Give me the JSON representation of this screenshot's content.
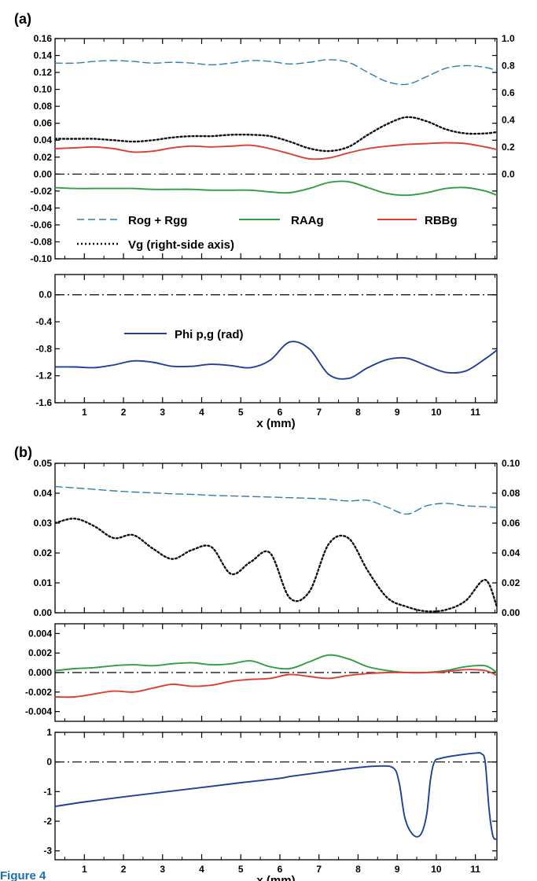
{
  "figure_labels": {
    "a": "(a)",
    "b": "(b)"
  },
  "caption_fragment": "Figure 4",
  "chart_data": [
    {
      "id": "a1",
      "type": "line",
      "xlim": [
        0.25,
        11.55
      ],
      "ylim": [
        -0.1,
        0.16
      ],
      "y_ticks": [
        "0.16",
        "0.14",
        "0.12",
        "0.10",
        "0.08",
        "0.06",
        "0.04",
        "0.02",
        "0.00",
        "-0.02",
        "-0.04",
        "-0.06",
        "-0.08",
        "-0.10"
      ],
      "y2lim": [
        -0.625,
        1.0
      ],
      "y2_ticks": [
        "1.0",
        "0.8",
        "0.6",
        "0.4",
        "0.2",
        "0.0"
      ],
      "zero_line": true,
      "legend": "inside lower-left",
      "series": [
        {
          "name": "Rog + Rgg",
          "axis": "left",
          "color": "#2a7fb0",
          "style": "dashed",
          "x": [
            0.25,
            0.75,
            1.25,
            1.75,
            2.25,
            2.75,
            3.25,
            3.75,
            4.25,
            4.75,
            5.25,
            5.75,
            6.25,
            6.75,
            7.25,
            7.75,
            8.25,
            8.75,
            9.25,
            9.75,
            10.25,
            10.75,
            11.25,
            11.55
          ],
          "y": [
            0.131,
            0.131,
            0.133,
            0.134,
            0.133,
            0.131,
            0.132,
            0.131,
            0.129,
            0.131,
            0.134,
            0.133,
            0.13,
            0.132,
            0.135,
            0.132,
            0.12,
            0.109,
            0.106,
            0.115,
            0.125,
            0.128,
            0.126,
            0.122
          ]
        },
        {
          "name": "RAAg",
          "axis": "left",
          "color": "#2f9e44",
          "style": "solid",
          "x": [
            0.25,
            0.75,
            1.25,
            1.75,
            2.25,
            2.75,
            3.25,
            3.75,
            4.25,
            4.75,
            5.25,
            5.75,
            6.25,
            6.75,
            7.25,
            7.75,
            8.25,
            8.75,
            9.25,
            9.75,
            10.25,
            10.75,
            11.25,
            11.55
          ],
          "y": [
            -0.016,
            -0.017,
            -0.017,
            -0.017,
            -0.017,
            -0.018,
            -0.018,
            -0.018,
            -0.019,
            -0.019,
            -0.019,
            -0.021,
            -0.022,
            -0.017,
            -0.01,
            -0.009,
            -0.016,
            -0.023,
            -0.025,
            -0.022,
            -0.017,
            -0.016,
            -0.02,
            -0.025
          ]
        },
        {
          "name": "RBBg",
          "axis": "left",
          "color": "#e03c31",
          "style": "solid",
          "x": [
            0.25,
            0.75,
            1.25,
            1.75,
            2.25,
            2.75,
            3.25,
            3.75,
            4.25,
            4.75,
            5.25,
            5.75,
            6.25,
            6.75,
            7.25,
            7.75,
            8.25,
            8.75,
            9.25,
            9.75,
            10.25,
            10.75,
            11.25,
            11.55
          ],
          "y": [
            0.03,
            0.031,
            0.032,
            0.03,
            0.026,
            0.027,
            0.031,
            0.033,
            0.032,
            0.033,
            0.034,
            0.03,
            0.024,
            0.018,
            0.019,
            0.025,
            0.03,
            0.033,
            0.035,
            0.036,
            0.037,
            0.036,
            0.032,
            0.029
          ]
        },
        {
          "name": "Vg (right-side axis)",
          "axis": "right",
          "color": "#111111",
          "style": "dotted",
          "x": [
            0.25,
            0.75,
            1.25,
            1.75,
            2.25,
            2.75,
            3.25,
            3.75,
            4.25,
            4.75,
            5.25,
            5.75,
            6.25,
            6.75,
            7.25,
            7.75,
            8.25,
            8.75,
            9.25,
            9.75,
            10.25,
            10.75,
            11.25,
            11.55
          ],
          "y": [
            0.26,
            0.26,
            0.26,
            0.25,
            0.24,
            0.25,
            0.27,
            0.28,
            0.28,
            0.29,
            0.29,
            0.28,
            0.24,
            0.19,
            0.17,
            0.2,
            0.29,
            0.37,
            0.42,
            0.39,
            0.33,
            0.3,
            0.3,
            0.31
          ]
        }
      ]
    },
    {
      "id": "a2",
      "type": "line",
      "xlim": [
        0.25,
        11.55
      ],
      "ylim": [
        -1.6,
        0.3
      ],
      "y_ticks": [
        "0.0",
        "-0.4",
        "-0.8",
        "-1.2",
        "-1.6"
      ],
      "x_ticks": [
        "1",
        "2",
        "3",
        "4",
        "5",
        "6",
        "7",
        "8",
        "9",
        "10",
        "11"
      ],
      "xlabel": "x (mm)",
      "zero_line": true,
      "legend": "inside top-left",
      "series": [
        {
          "name": "Phi p,g (rad)",
          "color": "#1f3f99",
          "style": "solid",
          "x": [
            0.25,
            0.75,
            1.25,
            1.75,
            2.25,
            2.75,
            3.25,
            3.75,
            4.25,
            4.75,
            5.25,
            5.75,
            6.25,
            6.75,
            7.25,
            7.75,
            8.25,
            8.75,
            9.25,
            9.75,
            10.25,
            10.75,
            11.25,
            11.55
          ],
          "y": [
            -1.07,
            -1.07,
            -1.08,
            -1.04,
            -0.98,
            -1.0,
            -1.06,
            -1.06,
            -1.03,
            -1.05,
            -1.08,
            -0.97,
            -0.7,
            -0.8,
            -1.18,
            -1.24,
            -1.08,
            -0.96,
            -0.94,
            -1.05,
            -1.15,
            -1.13,
            -0.95,
            -0.82
          ]
        }
      ]
    },
    {
      "id": "b1",
      "type": "line",
      "xlim": [
        0.25,
        11.55
      ],
      "ylim": [
        0.0,
        0.05
      ],
      "y_ticks": [
        "0.05",
        "0.04",
        "0.03",
        "0.02",
        "0.01",
        "0.00"
      ],
      "y2lim": [
        0.0,
        0.1
      ],
      "y2_ticks": [
        "0.10",
        "0.08",
        "0.06",
        "0.04",
        "0.02",
        "0.00"
      ],
      "series": [
        {
          "name": "Rog + Rgg",
          "axis": "left",
          "color": "#2a7fb0",
          "style": "dashed",
          "x": [
            0.25,
            0.75,
            1.25,
            1.75,
            2.25,
            2.75,
            3.25,
            3.75,
            4.25,
            4.75,
            5.25,
            5.75,
            6.25,
            6.75,
            7.25,
            7.75,
            8.25,
            8.75,
            9.25,
            9.75,
            10.25,
            10.75,
            11.25,
            11.55
          ],
          "y": [
            0.0422,
            0.0418,
            0.0413,
            0.0408,
            0.0404,
            0.0401,
            0.0398,
            0.0396,
            0.0393,
            0.0391,
            0.0389,
            0.0387,
            0.0385,
            0.0383,
            0.038,
            0.0374,
            0.0376,
            0.0353,
            0.033,
            0.0358,
            0.0366,
            0.0358,
            0.0355,
            0.0352
          ]
        },
        {
          "name": "Vg (right-side axis)",
          "axis": "right",
          "color": "#111111",
          "style": "dotted",
          "x": [
            0.25,
            0.75,
            1.25,
            1.75,
            2.25,
            2.75,
            3.25,
            3.75,
            4.25,
            4.75,
            5.25,
            5.75,
            6.25,
            6.75,
            7.25,
            7.75,
            8.25,
            8.75,
            9.25,
            9.75,
            10.25,
            10.75,
            11.25,
            11.55
          ],
          "y": [
            0.06,
            0.063,
            0.058,
            0.05,
            0.052,
            0.043,
            0.036,
            0.042,
            0.044,
            0.026,
            0.034,
            0.04,
            0.01,
            0.014,
            0.046,
            0.05,
            0.028,
            0.01,
            0.004,
            0.001,
            0.002,
            0.008,
            0.022,
            0.004
          ]
        }
      ]
    },
    {
      "id": "b2",
      "type": "line",
      "xlim": [
        0.25,
        11.55
      ],
      "ylim": [
        -0.005,
        0.005
      ],
      "y_ticks": [
        "0.004",
        "0.002",
        "0.000",
        "-0.002",
        "-0.004"
      ],
      "zero_line": true,
      "series": [
        {
          "name": "RAAg",
          "color": "#2f9e44",
          "style": "solid",
          "x": [
            0.25,
            0.75,
            1.25,
            1.75,
            2.25,
            2.75,
            3.25,
            3.75,
            4.25,
            4.75,
            5.25,
            5.75,
            6.25,
            6.75,
            7.25,
            7.75,
            8.25,
            8.75,
            9.25,
            9.75,
            10.25,
            10.75,
            11.25,
            11.55
          ],
          "y": [
            0.0002,
            0.0004,
            0.0005,
            0.0007,
            0.0008,
            0.0007,
            0.0009,
            0.001,
            0.0008,
            0.0009,
            0.0012,
            0.0006,
            0.0004,
            0.0011,
            0.0018,
            0.0014,
            0.0006,
            0.0002,
            0.0,
            0.0,
            0.0002,
            0.0006,
            0.0007,
            0.0
          ]
        },
        {
          "name": "RBBg",
          "color": "#e03c31",
          "style": "solid",
          "x": [
            0.25,
            0.75,
            1.25,
            1.75,
            2.25,
            2.75,
            3.25,
            3.75,
            4.25,
            4.75,
            5.25,
            5.75,
            6.25,
            6.75,
            7.25,
            7.75,
            8.25,
            8.75,
            9.25,
            9.75,
            10.25,
            10.75,
            11.25,
            11.55
          ],
          "y": [
            -0.0025,
            -0.0025,
            -0.0022,
            -0.0019,
            -0.002,
            -0.0016,
            -0.0012,
            -0.0014,
            -0.0013,
            -0.0009,
            -0.0007,
            -0.0006,
            -0.0002,
            -0.0004,
            -0.0006,
            -0.0003,
            -0.0001,
            0.0,
            0.0,
            0.0,
            0.0001,
            0.0003,
            0.0002,
            -0.0003
          ]
        }
      ]
    },
    {
      "id": "b3",
      "type": "line",
      "xlim": [
        0.25,
        11.55
      ],
      "ylim": [
        -3.3,
        1.0
      ],
      "y_ticks": [
        "1",
        "0",
        "-1",
        "-2",
        "-3"
      ],
      "x_ticks": [
        "1",
        "2",
        "3",
        "4",
        "5",
        "6",
        "7",
        "8",
        "9",
        "10",
        "11"
      ],
      "xlabel": "x (mm)",
      "zero_line": true,
      "series": [
        {
          "name": "Phi p,g (rad)",
          "color": "#1f3f99",
          "style": "solid",
          "x": [
            0.25,
            1,
            2,
            3,
            4,
            5,
            6,
            6.3,
            7,
            7.5,
            8,
            8.5,
            8.9,
            9.05,
            9.2,
            9.4,
            9.6,
            9.75,
            9.85,
            9.95,
            10.1,
            10.5,
            11,
            11.15,
            11.25,
            11.35,
            11.45,
            11.55
          ],
          "y": [
            -1.5,
            -1.35,
            -1.18,
            -1.02,
            -0.86,
            -0.7,
            -0.55,
            -0.48,
            -0.36,
            -0.27,
            -0.19,
            -0.14,
            -0.2,
            -0.7,
            -1.9,
            -2.45,
            -2.45,
            -1.8,
            -0.6,
            0.0,
            0.12,
            0.22,
            0.3,
            0.28,
            0.0,
            -1.6,
            -2.5,
            -2.6
          ]
        }
      ]
    }
  ]
}
